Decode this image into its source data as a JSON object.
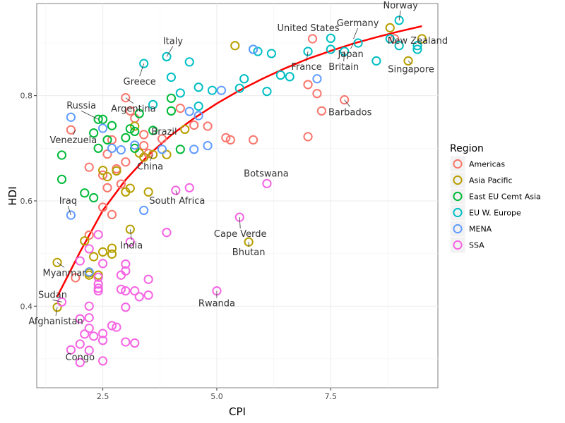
{
  "chart_data": {
    "type": "scatter",
    "title": "",
    "xlabel": "CPI",
    "ylabel": "HDI",
    "xlim": [
      1.05,
      9.85
    ],
    "ylim": [
      0.245,
      0.975
    ],
    "xticks": [
      2.5,
      5.0,
      7.5
    ],
    "xtick_labels": [
      "2.5",
      "5.0",
      "7.5"
    ],
    "yticks": [
      0.4,
      0.6,
      0.8
    ],
    "ytick_labels": [
      "0.4",
      "0.6",
      "0.8"
    ],
    "grid": true,
    "legend": {
      "title": "Region",
      "position": "right",
      "entries": [
        {
          "name": "Americas",
          "color": "#F8766D"
        },
        {
          "name": "Asia Pacific",
          "color": "#B79F00"
        },
        {
          "name": "East EU Cemt Asia",
          "color": "#00BA38"
        },
        {
          "name": "EU W. Europe",
          "color": "#00BFC4"
        },
        {
          "name": "MENA",
          "color": "#619CFF"
        },
        {
          "name": "SSA",
          "color": "#F564E3"
        }
      ]
    },
    "trend_line": {
      "color": "#FF0000",
      "x": [
        1.5,
        2.0,
        2.5,
        3.0,
        3.5,
        4.0,
        4.5,
        5.0,
        5.5,
        6.0,
        6.5,
        7.0,
        7.5,
        8.0,
        8.5,
        9.0,
        9.5
      ],
      "y": [
        0.418,
        0.503,
        0.582,
        0.64,
        0.687,
        0.725,
        0.757,
        0.785,
        0.81,
        0.832,
        0.852,
        0.87,
        0.885,
        0.899,
        0.911,
        0.922,
        0.932
      ]
    },
    "series": [
      {
        "name": "Americas",
        "color": "#F8766D",
        "points": [
          [
            1.8,
            0.735
          ],
          [
            2.2,
            0.664
          ],
          [
            2.5,
            0.649
          ],
          [
            2.5,
            0.588
          ],
          [
            2.6,
            0.625
          ],
          [
            2.6,
            0.689
          ],
          [
            2.7,
            0.574
          ],
          [
            2.7,
            0.716
          ],
          [
            2.8,
            0.661
          ],
          [
            2.9,
            0.632
          ],
          [
            3.0,
            0.796
          ],
          [
            3.0,
            0.674
          ],
          [
            3.1,
            0.771
          ],
          [
            3.2,
            0.757
          ],
          [
            3.4,
            0.705
          ],
          [
            3.4,
            0.726
          ],
          [
            3.5,
            0.69
          ],
          [
            3.8,
            0.718
          ],
          [
            4.2,
            0.776
          ],
          [
            4.5,
            0.744
          ],
          [
            4.8,
            0.742
          ],
          [
            5.2,
            0.72
          ],
          [
            5.3,
            0.716
          ],
          [
            5.8,
            0.716
          ],
          [
            7.0,
            0.821
          ],
          [
            7.0,
            0.722
          ],
          [
            7.1,
            0.908
          ],
          [
            7.2,
            0.804
          ],
          [
            7.3,
            0.771
          ],
          [
            7.8,
            0.792
          ],
          [
            8.9,
            0.908
          ],
          [
            1.9,
            0.454
          ],
          [
            2.2,
            0.535
          ]
        ]
      },
      {
        "name": "Asia Pacific",
        "color": "#B79F00",
        "points": [
          [
            1.5,
            0.398
          ],
          [
            1.5,
            0.483
          ],
          [
            2.1,
            0.524
          ],
          [
            2.2,
            0.459
          ],
          [
            2.3,
            0.494
          ],
          [
            2.4,
            0.459
          ],
          [
            2.5,
            0.503
          ],
          [
            2.5,
            0.658
          ],
          [
            2.6,
            0.646
          ],
          [
            2.7,
            0.51
          ],
          [
            2.7,
            0.499
          ],
          [
            2.8,
            0.657
          ],
          [
            3.0,
            0.617
          ],
          [
            3.1,
            0.546
          ],
          [
            3.1,
            0.624
          ],
          [
            3.2,
            0.742
          ],
          [
            3.3,
            0.691
          ],
          [
            3.4,
            0.683
          ],
          [
            3.5,
            0.617
          ],
          [
            3.6,
            0.688
          ],
          [
            3.9,
            0.688
          ],
          [
            4.3,
            0.736
          ],
          [
            5.4,
            0.895
          ],
          [
            8.8,
            0.929
          ],
          [
            9.2,
            0.866
          ],
          [
            9.5,
            0.908
          ],
          [
            5.7,
            0.522
          ],
          [
            2.2,
            0.463
          ]
        ]
      },
      {
        "name": "East EU Cemt Asia",
        "color": "#00BA38",
        "points": [
          [
            1.6,
            0.687
          ],
          [
            1.6,
            0.641
          ],
          [
            2.1,
            0.615
          ],
          [
            2.3,
            0.606
          ],
          [
            2.4,
            0.7
          ],
          [
            2.4,
            0.755
          ],
          [
            2.5,
            0.755
          ],
          [
            2.6,
            0.716
          ],
          [
            2.7,
            0.743
          ],
          [
            3.1,
            0.737
          ],
          [
            3.2,
            0.732
          ],
          [
            3.2,
            0.7
          ],
          [
            3.3,
            0.766
          ],
          [
            3.6,
            0.734
          ],
          [
            4.0,
            0.771
          ],
          [
            4.0,
            0.795
          ],
          [
            4.2,
            0.698
          ],
          [
            2.3,
            0.729
          ],
          [
            3.0,
            0.72
          ]
        ]
      },
      {
        "name": "EU W. Europe",
        "color": "#00BFC4",
        "points": [
          [
            3.4,
            0.861
          ],
          [
            3.9,
            0.874
          ],
          [
            4.0,
            0.835
          ],
          [
            4.2,
            0.805
          ],
          [
            4.4,
            0.864
          ],
          [
            4.6,
            0.816
          ],
          [
            4.9,
            0.81
          ],
          [
            5.5,
            0.814
          ],
          [
            5.6,
            0.832
          ],
          [
            5.8,
            0.888
          ],
          [
            5.9,
            0.884
          ],
          [
            6.1,
            0.808
          ],
          [
            6.2,
            0.88
          ],
          [
            6.4,
            0.839
          ],
          [
            6.6,
            0.836
          ],
          [
            7.0,
            0.884
          ],
          [
            7.5,
            0.909
          ],
          [
            7.5,
            0.888
          ],
          [
            7.8,
            0.884
          ],
          [
            8.1,
            0.9
          ],
          [
            8.5,
            0.866
          ],
          [
            8.8,
            0.908
          ],
          [
            9.0,
            0.895
          ],
          [
            9.4,
            0.888
          ],
          [
            9.4,
            0.895
          ],
          [
            9.0,
            0.943
          ],
          [
            3.6,
            0.783
          ],
          [
            4.6,
            0.78
          ]
        ]
      },
      {
        "name": "MENA",
        "color": "#619CFF",
        "points": [
          [
            1.8,
            0.573
          ],
          [
            1.8,
            0.759
          ],
          [
            2.2,
            0.465
          ],
          [
            2.5,
            0.738
          ],
          [
            2.7,
            0.7
          ],
          [
            2.9,
            0.697
          ],
          [
            3.2,
            0.706
          ],
          [
            3.4,
            0.582
          ],
          [
            3.8,
            0.698
          ],
          [
            4.4,
            0.77
          ],
          [
            4.5,
            0.698
          ],
          [
            4.6,
            0.762
          ],
          [
            4.8,
            0.705
          ],
          [
            5.1,
            0.81
          ],
          [
            5.8,
            0.888
          ],
          [
            7.2,
            0.832
          ]
        ]
      },
      {
        "name": "SSA",
        "color": "#F564E3",
        "points": [
          [
            1.6,
            0.408
          ],
          [
            1.8,
            0.317
          ],
          [
            2.0,
            0.376
          ],
          [
            2.0,
            0.328
          ],
          [
            2.1,
            0.347
          ],
          [
            2.2,
            0.358
          ],
          [
            2.2,
            0.4
          ],
          [
            2.2,
            0.509
          ],
          [
            2.3,
            0.343
          ],
          [
            2.4,
            0.429
          ],
          [
            2.4,
            0.434
          ],
          [
            2.4,
            0.455
          ],
          [
            2.5,
            0.335
          ],
          [
            2.5,
            0.348
          ],
          [
            2.5,
            0.481
          ],
          [
            2.7,
            0.363
          ],
          [
            2.8,
            0.36
          ],
          [
            2.9,
            0.432
          ],
          [
            2.9,
            0.459
          ],
          [
            3.0,
            0.398
          ],
          [
            3.0,
            0.429
          ],
          [
            3.0,
            0.467
          ],
          [
            3.0,
            0.48
          ],
          [
            3.0,
            0.332
          ],
          [
            3.1,
            0.522
          ],
          [
            3.2,
            0.429
          ],
          [
            3.2,
            0.33
          ],
          [
            3.3,
            0.418
          ],
          [
            3.5,
            0.451
          ],
          [
            3.5,
            0.421
          ],
          [
            3.9,
            0.54
          ],
          [
            4.1,
            0.62
          ],
          [
            4.4,
            0.625
          ],
          [
            5.0,
            0.429
          ],
          [
            5.5,
            0.569
          ],
          [
            6.1,
            0.633
          ],
          [
            2.0,
            0.293
          ],
          [
            2.2,
            0.316
          ],
          [
            2.5,
            0.296
          ],
          [
            2.4,
            0.442
          ],
          [
            2.2,
            0.378
          ],
          [
            2.4,
            0.536
          ],
          [
            2.0,
            0.486
          ]
        ]
      }
    ],
    "annotations": [
      {
        "text": "Norway",
        "x": 9.0,
        "y": 0.943
      },
      {
        "text": "United States",
        "x": 7.1,
        "y": 0.908
      },
      {
        "text": "Germany",
        "x": 8.0,
        "y": 0.908
      },
      {
        "text": "New Zealand",
        "x": 9.5,
        "y": 0.908
      },
      {
        "text": "Italy",
        "x": 3.9,
        "y": 0.874
      },
      {
        "text": "Japan",
        "x": 8.0,
        "y": 0.9
      },
      {
        "text": "France",
        "x": 7.0,
        "y": 0.884
      },
      {
        "text": "Britain",
        "x": 7.8,
        "y": 0.884
      },
      {
        "text": "Singapore",
        "x": 9.2,
        "y": 0.866
      },
      {
        "text": "Greece",
        "x": 3.4,
        "y": 0.861
      },
      {
        "text": "Russia",
        "x": 2.4,
        "y": 0.755
      },
      {
        "text": "Argentina",
        "x": 3.0,
        "y": 0.796
      },
      {
        "text": "Barbados",
        "x": 7.8,
        "y": 0.792
      },
      {
        "text": "Brazil",
        "x": 3.8,
        "y": 0.718
      },
      {
        "text": "Venezuela",
        "x": 1.9,
        "y": 0.735
      },
      {
        "text": "China",
        "x": 3.6,
        "y": 0.688
      },
      {
        "text": "South Africa",
        "x": 4.1,
        "y": 0.62
      },
      {
        "text": "Botswana",
        "x": 6.1,
        "y": 0.633
      },
      {
        "text": "Iraq",
        "x": 1.8,
        "y": 0.573
      },
      {
        "text": "Cape Verde",
        "x": 5.5,
        "y": 0.569
      },
      {
        "text": "India",
        "x": 3.1,
        "y": 0.546
      },
      {
        "text": "Bhutan",
        "x": 5.7,
        "y": 0.522
      },
      {
        "text": "Myanmar",
        "x": 1.5,
        "y": 0.483
      },
      {
        "text": "Rwanda",
        "x": 5.0,
        "y": 0.429
      },
      {
        "text": "Sudan",
        "x": 1.6,
        "y": 0.408
      },
      {
        "text": "Afghanistan",
        "x": 1.5,
        "y": 0.398
      },
      {
        "text": "Congo",
        "x": 2.0,
        "y": 0.293
      }
    ]
  }
}
